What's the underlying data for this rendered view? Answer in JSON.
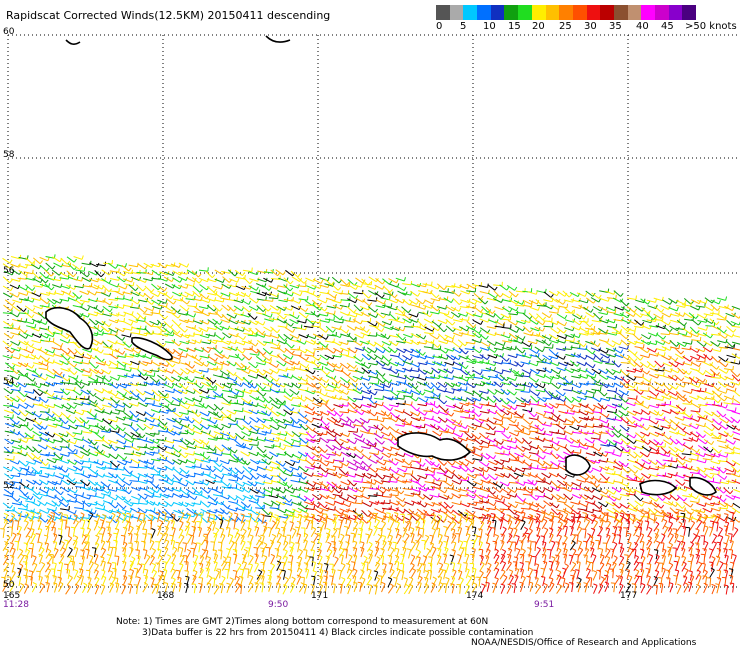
{
  "title": "Rapidscat Corrected Winds(12.5KM) 20150411 descending",
  "legend": {
    "colors": [
      "#555555",
      "#aaaaaa",
      "#00c8ff",
      "#0070ff",
      "#1030c0",
      "#10a010",
      "#20dd20",
      "#ffee00",
      "#ffc000",
      "#ff8000",
      "#ff5000",
      "#ee1010",
      "#bb0000",
      "#8b5030",
      "#c09070",
      "#ff00ff",
      "#cc00cc",
      "#8800cc",
      "#4a0080"
    ],
    "labels": [
      "0",
      "5",
      "10",
      "15",
      "20",
      "25",
      "30",
      "35",
      "40",
      "45",
      ">50 knots"
    ]
  },
  "latitude_labels": [
    "60",
    "58",
    "56",
    "54",
    "52",
    "50"
  ],
  "longitude_labels": [
    "165",
    "168",
    "171",
    "174",
    "177"
  ],
  "time_labels": [
    "11:28",
    "9:50",
    "9:51"
  ],
  "notes": [
    "Note: 1) Times are GMT 2)Times along bottom correspond to measurement at 60N",
    "3)Data buffer is 22 hrs from 20150411 4) Black circles indicate possible contamination"
  ],
  "credit": "NOAA/NESDIS/Office of Research and Applications"
}
